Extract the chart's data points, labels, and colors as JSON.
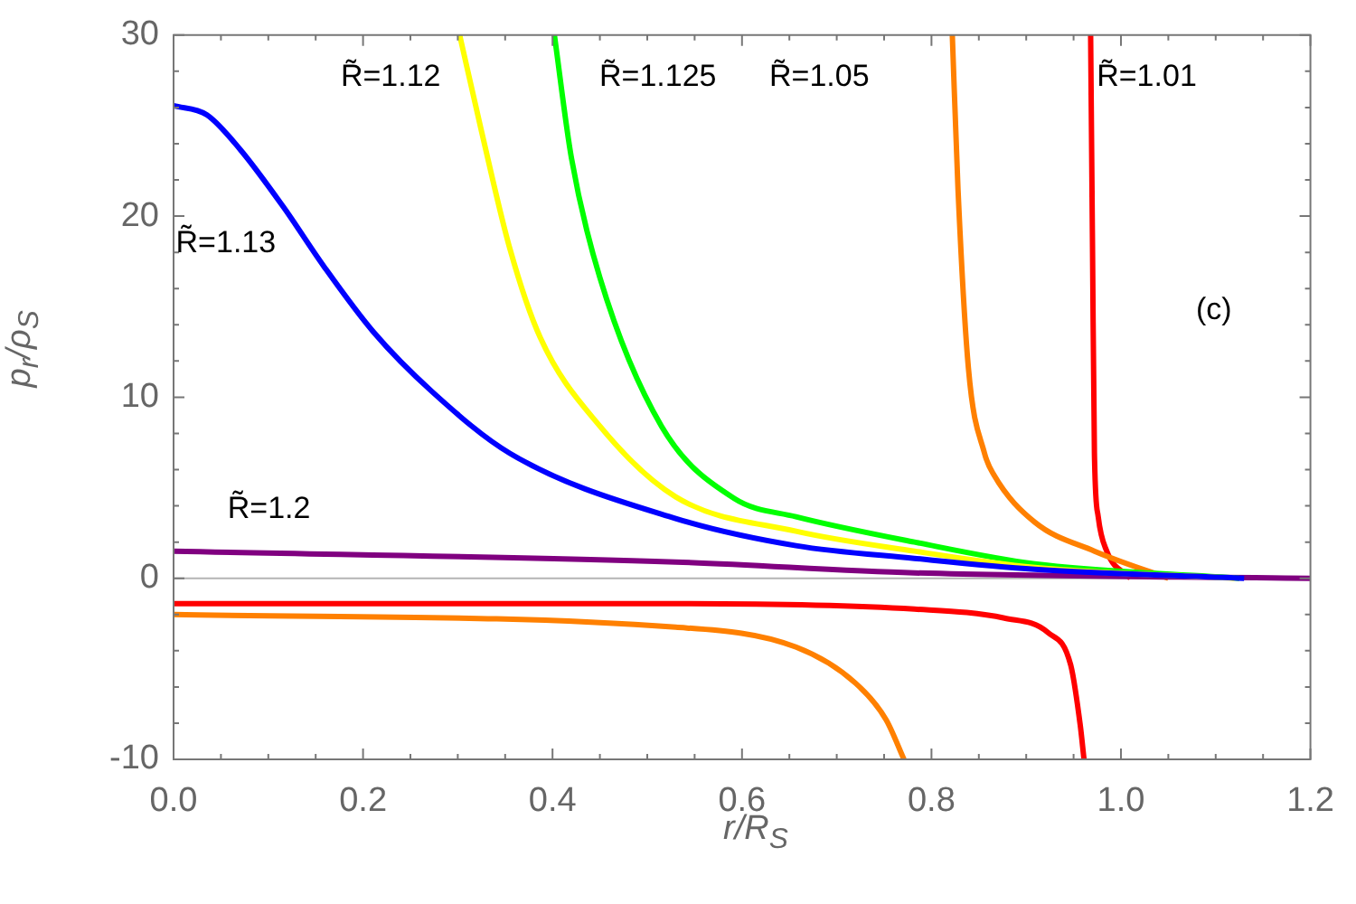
{
  "chart_data": {
    "type": "line",
    "xlabel": "r/R$_{S}$",
    "ylabel": "p$_{r}$/ρ$_{S}$",
    "xlim": [
      0,
      1.2
    ],
    "ylim": [
      -10,
      30
    ],
    "xticks": [
      {
        "value": 0,
        "label": "0.0"
      },
      {
        "value": 0.05,
        "label": null
      },
      {
        "value": 0.1,
        "label": null
      },
      {
        "value": 0.15,
        "label": null
      },
      0.2,
      {
        "value": 0.25,
        "label": null
      },
      {
        "value": 0.3,
        "label": null
      },
      {
        "value": 0.35,
        "label": null
      },
      0.4,
      {
        "value": 0.45,
        "label": null
      },
      {
        "value": 0.5,
        "label": null
      },
      {
        "value": 0.55,
        "label": null
      },
      0.6,
      {
        "value": 0.65,
        "label": null
      },
      {
        "value": 0.7,
        "label": null
      },
      {
        "value": 0.75,
        "label": null
      },
      0.8,
      {
        "value": 0.85,
        "label": null
      },
      {
        "value": 0.9,
        "label": null
      },
      {
        "value": 0.95,
        "label": null
      },
      {
        "value": 1,
        "label": "1.0"
      },
      {
        "value": 1.05,
        "label": null
      },
      {
        "value": 1.1,
        "label": null
      },
      {
        "value": 1.15,
        "label": null
      },
      1.2
    ],
    "yticks": [
      -10,
      {
        "value": -8,
        "label": null
      },
      {
        "value": -6,
        "label": null
      },
      {
        "value": -4,
        "label": null
      },
      {
        "value": -2,
        "label": null
      },
      0,
      {
        "value": 2,
        "label": null
      },
      {
        "value": 4,
        "label": null
      },
      {
        "value": 6,
        "label": null
      },
      {
        "value": 8,
        "label": null
      },
      10,
      {
        "value": 12,
        "label": null
      },
      {
        "value": 14,
        "label": null
      },
      {
        "value": 16,
        "label": null
      },
      {
        "value": 18,
        "label": null
      },
      20,
      {
        "value": 22,
        "label": null
      },
      {
        "value": 24,
        "label": null
      },
      {
        "value": 26,
        "label": null
      },
      {
        "value": 28,
        "label": null
      },
      30
    ],
    "marker": "none",
    "ref_lines": [
      {
        "axis": "y",
        "value": 0,
        "label": null,
        "color": "#b4b4b4"
      }
    ],
    "annotations": [
      "(c)"
    ],
    "series": [
      {
        "name": "R̃=1.13",
        "color": "#0000ff",
        "x": [
          0,
          0.035,
          0.07,
          0.116,
          0.159,
          0.211,
          0.273,
          0.355,
          0.53,
          0.657,
          0.782,
          0.909,
          1.13
        ],
        "values": [
          26.1,
          25.6,
          23.7,
          20.5,
          17.2,
          13.6,
          10.3,
          6.9,
          3.3,
          1.8,
          1.1,
          0.5,
          0
        ]
      },
      {
        "name": "R̃=1.12",
        "color": "#ffff00",
        "x": [
          0.302,
          0.325,
          0.355,
          0.387,
          0.45,
          0.53,
          0.657,
          0.782,
          0.909,
          1.12
        ],
        "values": [
          30,
          24.7,
          18.2,
          13.3,
          8.4,
          4.5,
          2.6,
          1.5,
          0.6,
          0
        ]
      },
      {
        "name": "R̃=1.125",
        "color": "#00ff00",
        "x": [
          0.402,
          0.42,
          0.45,
          0.515,
          0.592,
          0.657,
          0.782,
          0.909,
          1.125
        ],
        "values": [
          30,
          23.2,
          16.6,
          8.4,
          4.4,
          3.4,
          2,
          0.8,
          0
        ]
      },
      {
        "name": "R̃=1.2",
        "color": "#800080",
        "x": [
          0,
          0.53,
          0.782,
          1.2
        ],
        "values": [
          1.5,
          0.9,
          0.3,
          0
        ]
      },
      {
        "name": "R̃=1.05",
        "color": "#ff8000",
        "x": [
          0.822,
          0.828,
          0.839,
          0.856,
          0.866,
          0.909,
          0.972,
          1.05
        ],
        "values": [
          30,
          21.5,
          11.6,
          6.9,
          5.7,
          3.1,
          1.5,
          0
        ]
      },
      {
        "color": "#ff8000",
        "x": [
          0,
          0.53,
          0.657,
          0.72,
          0.752,
          0.771
        ],
        "values": [
          -2,
          -2.7,
          -3.8,
          -5.8,
          -7.8,
          -10
        ]
      },
      {
        "name": "R̃=1.01",
        "color": "#ff0000",
        "x": [
          0.968,
          0.97,
          0.972,
          0.976,
          0.985,
          1.01
        ],
        "values": [
          30,
          18.2,
          6.9,
          3.4,
          1.5,
          0
        ]
      },
      {
        "color": "#ff0000",
        "x": [
          0,
          0.53,
          0.782,
          0.877,
          0.923,
          0.947,
          0.957,
          0.961
        ],
        "values": [
          -1.4,
          -1.4,
          -1.7,
          -2.2,
          -3.0,
          -4.8,
          -8.1,
          -10
        ]
      }
    ]
  }
}
